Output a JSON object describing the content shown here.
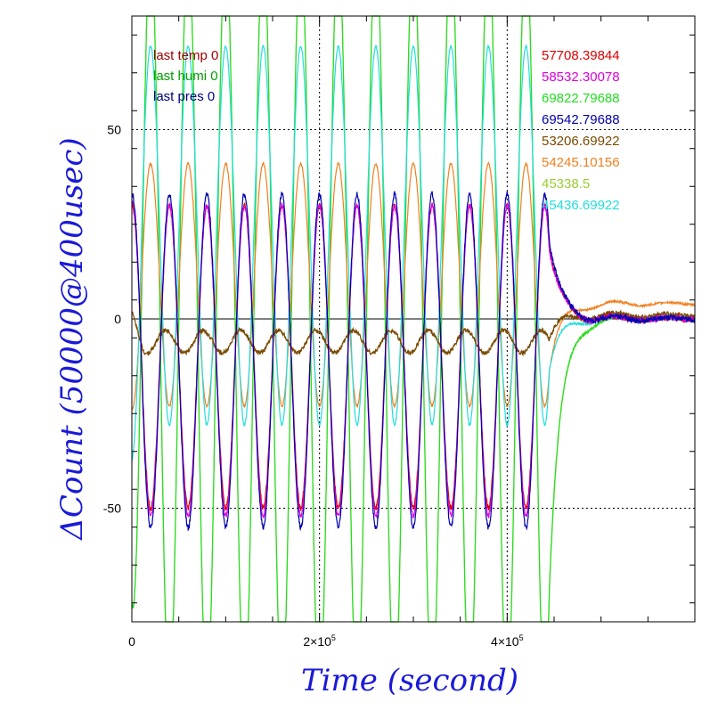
{
  "chart_data": {
    "type": "line",
    "title": "",
    "xlabel": "Time (second)",
    "ylabel": "ΔCount (50000@400usec)",
    "xlim": [
      0,
      600000
    ],
    "ylim": [
      -80,
      80
    ],
    "grid": "dotted at y=-50, y=50 and x=200000, x=400000",
    "zero_line": true,
    "x_ticks": [
      {
        "value": 0,
        "label": "0"
      },
      {
        "value": 200000,
        "label": "2×10",
        "exp": "5"
      },
      {
        "value": 400000,
        "label": "4×10",
        "exp": "5"
      }
    ],
    "y_ticks": [
      {
        "value": -50,
        "label": "-50"
      },
      {
        "value": 0,
        "label": "0"
      },
      {
        "value": 50,
        "label": "50"
      }
    ],
    "annotations": [
      {
        "text": "last temp 0",
        "color": "#a00000"
      },
      {
        "text": "last humi 0",
        "color": "#00a000"
      },
      {
        "text": "last pres 0",
        "color": "#000080"
      }
    ],
    "legend_position": "top-right",
    "series": [
      {
        "name": "57708.39844",
        "color": "#dd0000",
        "amp": 40,
        "bias": -10,
        "phase": 0.0,
        "noise": 1.5,
        "settle": 0
      },
      {
        "name": "58532.30078",
        "color": "#e000e0",
        "amp": 41,
        "bias": -11,
        "phase": 0.0,
        "noise": 1.5,
        "settle": 0
      },
      {
        "name": "69822.79688",
        "color": "#22dd22",
        "amp": 100,
        "bias": 0,
        "phase": 3.14159,
        "noise": 0.8,
        "settle": 0
      },
      {
        "name": "69542.79688",
        "color": "#0000b0",
        "amp": 44,
        "bias": -11,
        "phase": 0.0,
        "noise": 1.5,
        "settle": 0
      },
      {
        "name": "53206.69922",
        "color": "#7a4a00",
        "amp": 3,
        "bias": -6,
        "phase": 0.6,
        "noise": 1.2,
        "settle": 1
      },
      {
        "name": "54245.10156",
        "color": "#f08020",
        "amp": 32,
        "bias": 9,
        "phase": 3.14159,
        "noise": 0.6,
        "settle": 4
      },
      {
        "name": "45338.5",
        "color": "#9acd32",
        "amp": 100,
        "bias": -1,
        "phase": 3.14159,
        "noise": 0.6,
        "settle": 0
      },
      {
        "name": "45436.69922",
        "color": "#22dddd",
        "amp": 50,
        "bias": 22,
        "phase": 3.14159,
        "noise": 0.6,
        "settle": 0
      }
    ],
    "oscillation": {
      "period": 40000,
      "end": 445000
    }
  }
}
